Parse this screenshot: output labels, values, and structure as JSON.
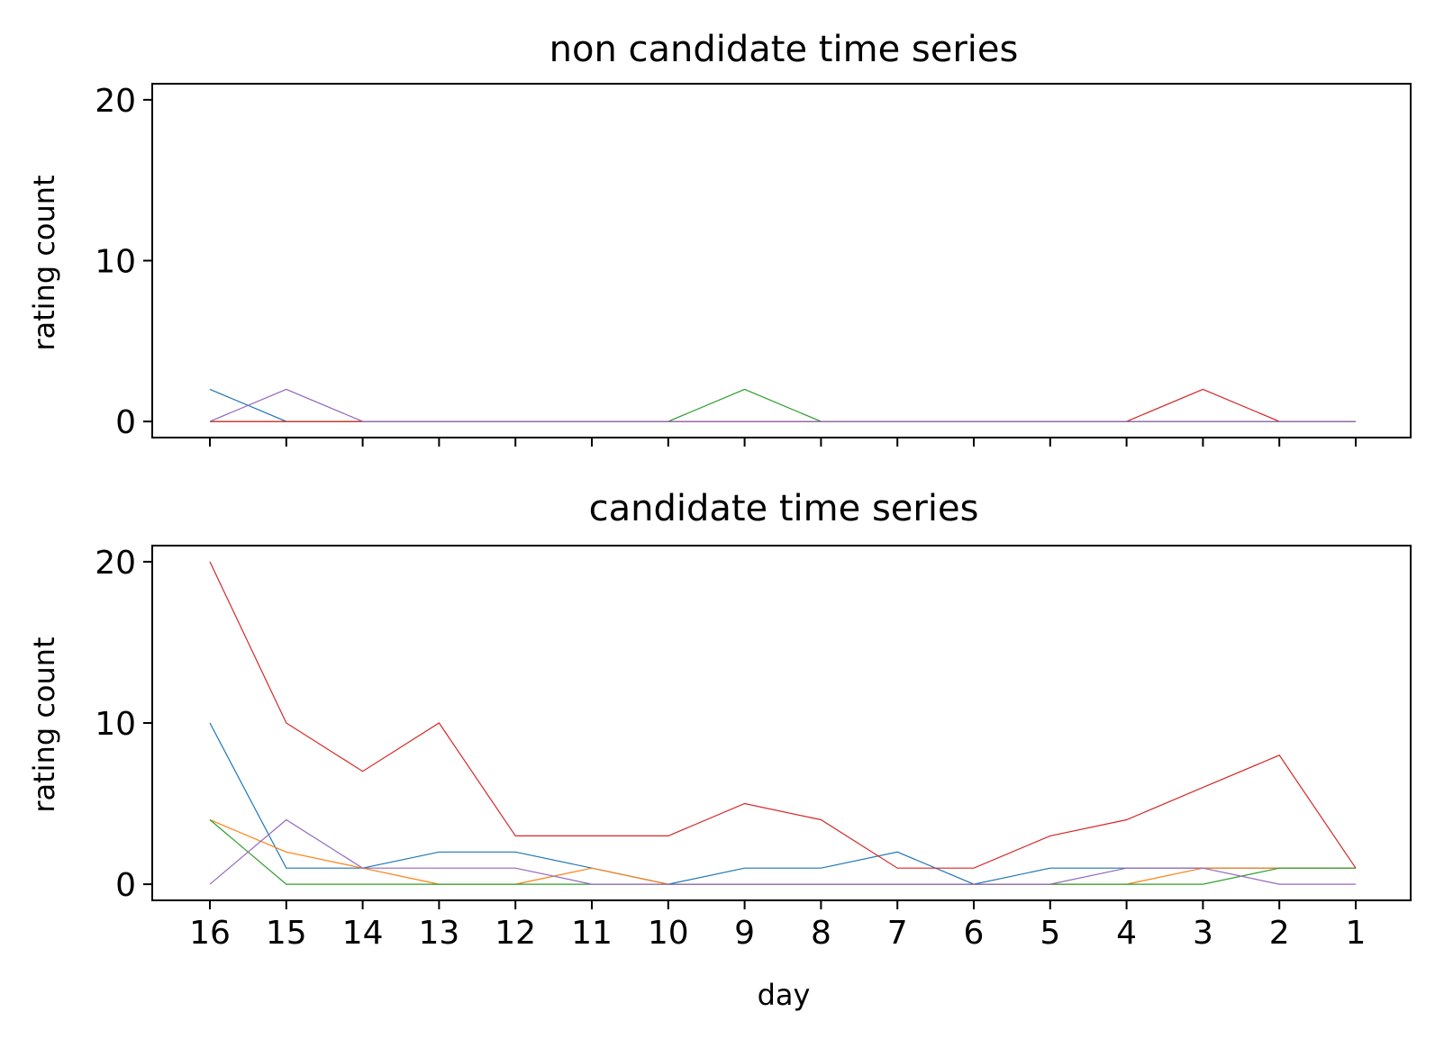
{
  "chart_data": [
    {
      "type": "line",
      "title": "non candidate time series",
      "xlabel": "",
      "ylabel": "rating count",
      "categories": [
        "16",
        "15",
        "14",
        "13",
        "12",
        "11",
        "10",
        "9",
        "8",
        "7",
        "6",
        "5",
        "4",
        "3",
        "2",
        "1"
      ],
      "ylim": [
        -1,
        21
      ],
      "yticks": [
        0,
        10,
        20
      ],
      "show_x_tick_labels": false,
      "grid": false,
      "series": [
        {
          "color": "#1f77b4",
          "values": [
            2,
            0,
            0,
            0,
            0,
            0,
            0,
            0,
            0,
            0,
            0,
            0,
            0,
            0,
            0,
            0
          ]
        },
        {
          "color": "#ff7f0e",
          "values": [
            0,
            0,
            0,
            0,
            0,
            0,
            0,
            0,
            0,
            0,
            0,
            0,
            0,
            0,
            0,
            0
          ]
        },
        {
          "color": "#2ca02c",
          "values": [
            0,
            0,
            0,
            0,
            0,
            0,
            0,
            2,
            0,
            0,
            0,
            0,
            0,
            0,
            0,
            0
          ]
        },
        {
          "color": "#d62728",
          "values": [
            0,
            0,
            0,
            0,
            0,
            0,
            0,
            0,
            0,
            0,
            0,
            0,
            0,
            2,
            0,
            0
          ]
        },
        {
          "color": "#9467bd",
          "values": [
            0,
            2,
            0,
            0,
            0,
            0,
            0,
            0,
            0,
            0,
            0,
            0,
            0,
            0,
            0,
            0
          ]
        }
      ]
    },
    {
      "type": "line",
      "title": "candidate time series",
      "xlabel": "day",
      "ylabel": "rating count",
      "categories": [
        "16",
        "15",
        "14",
        "13",
        "12",
        "11",
        "10",
        "9",
        "8",
        "7",
        "6",
        "5",
        "4",
        "3",
        "2",
        "1"
      ],
      "ylim": [
        -1,
        21
      ],
      "yticks": [
        0,
        10,
        20
      ],
      "show_x_tick_labels": true,
      "grid": false,
      "series": [
        {
          "color": "#1f77b4",
          "values": [
            10,
            1,
            1,
            2,
            2,
            1,
            0,
            1,
            1,
            2,
            0,
            1,
            1,
            1,
            1,
            1
          ]
        },
        {
          "color": "#ff7f0e",
          "values": [
            4,
            2,
            1,
            0,
            0,
            1,
            0,
            0,
            0,
            0,
            0,
            0,
            0,
            1,
            1,
            1
          ]
        },
        {
          "color": "#2ca02c",
          "values": [
            4,
            0,
            0,
            0,
            0,
            0,
            0,
            0,
            0,
            0,
            0,
            0,
            0,
            0,
            1,
            1
          ]
        },
        {
          "color": "#d62728",
          "values": [
            20,
            10,
            7,
            10,
            3,
            3,
            3,
            5,
            4,
            1,
            1,
            3,
            4,
            6,
            8,
            1
          ]
        },
        {
          "color": "#9467bd",
          "values": [
            0,
            4,
            1,
            1,
            1,
            0,
            0,
            0,
            0,
            0,
            0,
            0,
            1,
            1,
            0,
            0
          ]
        }
      ]
    }
  ]
}
